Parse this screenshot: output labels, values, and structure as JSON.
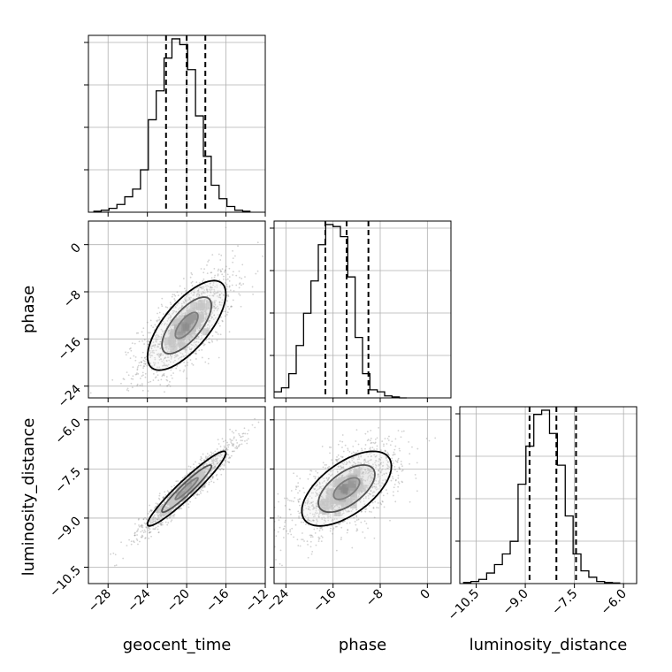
{
  "chart_data": {
    "type": "corner",
    "parameters": [
      "geocent_time",
      "phase",
      "luminosity_distance"
    ],
    "ranges": {
      "geocent_time": [
        -30,
        -12
      ],
      "phase": [
        -26,
        4
      ],
      "luminosity_distance": [
        -11.0,
        -5.6
      ]
    },
    "ticks": {
      "geocent_time": [
        -28,
        -24,
        -20,
        -16,
        -12
      ],
      "phase": [
        -24,
        -16,
        -8,
        0
      ],
      "luminosity_distance": [
        -10.5,
        -9.0,
        -7.5,
        -6.0
      ]
    },
    "tick_labels": {
      "geocent_time": [
        "−28",
        "−24",
        "−20",
        "−16",
        "−12"
      ],
      "phase": [
        "−24",
        "−16",
        "−8",
        "0"
      ],
      "luminosity_distance": [
        "−10.5",
        "−9.0",
        "−7.5",
        "−6.0"
      ]
    },
    "quantiles": {
      "geocent_time": [
        -22.1,
        -20.0,
        -18.1
      ],
      "phase": [
        -17.3,
        -13.7,
        -10.0
      ],
      "luminosity_distance": [
        -8.87,
        -8.05,
        -7.45
      ]
    },
    "histograms": {
      "geocent_time": {
        "edges_start": -29.5,
        "bin_width": 0.8,
        "counts": [
          0.5,
          1,
          2,
          4,
          8,
          12,
          22,
          48,
          63,
          80,
          90,
          87,
          74,
          50,
          29,
          14,
          7,
          3,
          1,
          0.5
        ]
      },
      "phase": {
        "edges_start": -26.0,
        "bin_width": 1.25,
        "counts": [
          3,
          5,
          12,
          26,
          42,
          58,
          76,
          86,
          85,
          80,
          60,
          30,
          12,
          4,
          3,
          1,
          0.5,
          0
        ]
      },
      "luminosity_distance": {
        "edges_start": -10.9,
        "bin_width": 0.24,
        "counts": [
          0.5,
          1,
          2,
          5,
          9,
          14,
          20,
          47,
          65,
          80,
          82,
          71,
          56,
          32,
          14,
          6,
          3,
          1,
          0.5,
          0.3
        ]
      }
    },
    "correlations": {
      "phase_vs_geocent_time": 0.7,
      "luminosity_distance_vs_geocent_time": 0.95,
      "luminosity_distance_vs_phase": 0.6
    },
    "centers": {
      "geocent_time": -20.0,
      "phase": -13.7,
      "luminosity_distance": -8.1
    },
    "spreads": {
      "geocent_time": 2.1,
      "phase": 4.0,
      "luminosity_distance": 0.6
    },
    "grid": true,
    "colors": {
      "ink": "#000000",
      "grid": "#b0b0b0",
      "points": "#7f7f7f"
    }
  }
}
